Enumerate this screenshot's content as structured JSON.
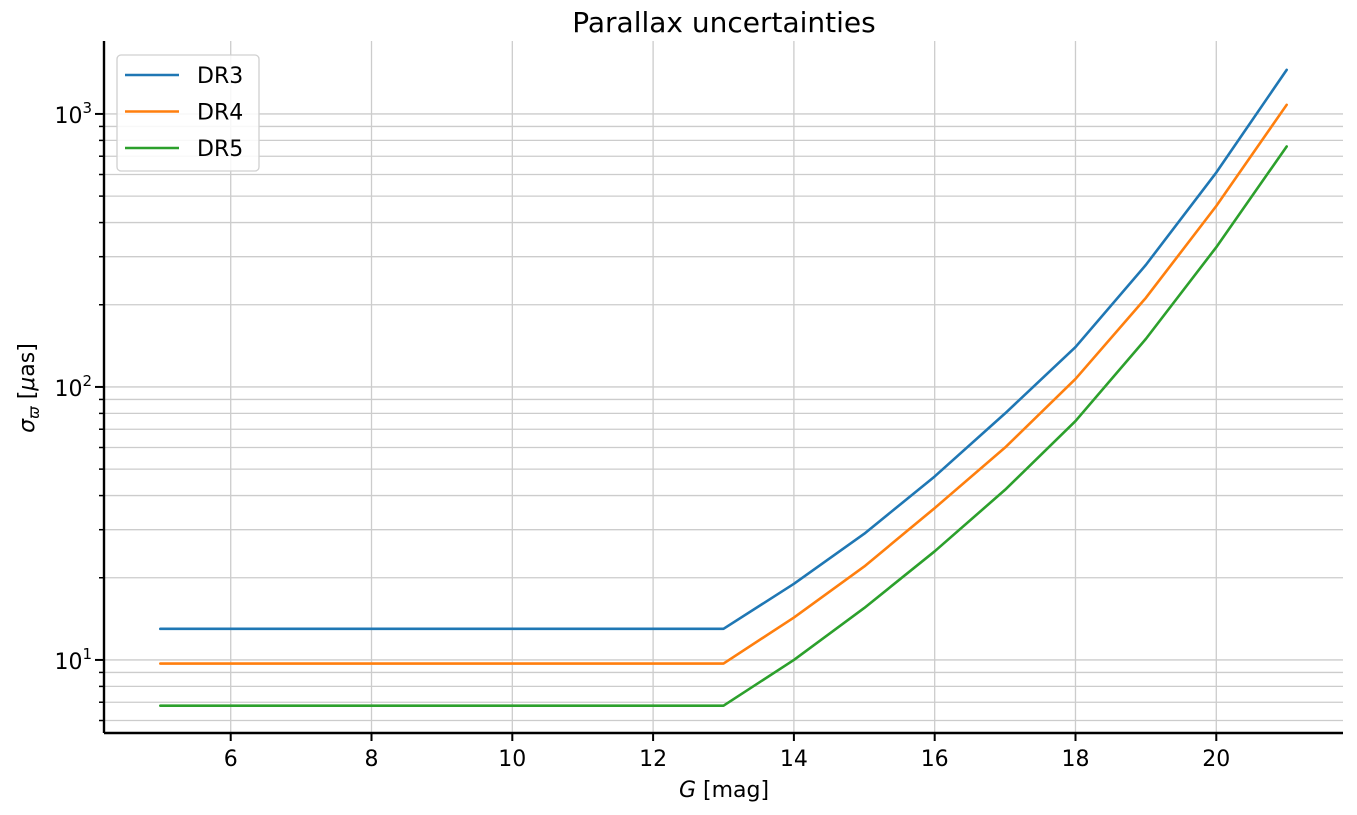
{
  "chart_data": {
    "type": "line",
    "title": "Parallax uncertainties",
    "xlabel": {
      "symbol": "G",
      "unit": " [mag]"
    },
    "ylabel": {
      "symbol": "σ",
      "subscript": "ϖ",
      "unit_prefix": " [",
      "unit_mu": "μ",
      "unit_rest": "as]"
    },
    "xlim": [
      4.2,
      21.8
    ],
    "ylim": [
      5.4,
      1850
    ],
    "yscale": "log",
    "xticks": [
      6,
      8,
      10,
      12,
      14,
      16,
      18,
      20
    ],
    "yticks_major": [
      {
        "value": 10,
        "base": "10",
        "exp": "1"
      },
      {
        "value": 100,
        "base": "10",
        "exp": "2"
      },
      {
        "value": 1000,
        "base": "10",
        "exp": "3"
      }
    ],
    "yticks_minor": [
      6,
      7,
      8,
      9,
      20,
      30,
      40,
      50,
      60,
      70,
      80,
      90,
      200,
      300,
      400,
      500,
      600,
      700,
      800,
      900
    ],
    "grid": true,
    "legend_position": "top-left",
    "series": [
      {
        "name": "DR3",
        "color": "#1f77b4",
        "x": [
          5,
          6,
          7,
          8,
          9,
          10,
          11,
          12,
          13,
          14,
          15,
          16,
          17,
          18,
          19,
          20,
          21
        ],
        "y": [
          13,
          13,
          13,
          13,
          13,
          13,
          13,
          13,
          13,
          19,
          29,
          47,
          80,
          140,
          280,
          610,
          1450
        ]
      },
      {
        "name": "DR4",
        "color": "#ff7f0e",
        "x": [
          5,
          6,
          7,
          8,
          9,
          10,
          11,
          12,
          13,
          14,
          15,
          16,
          17,
          18,
          19,
          20,
          21
        ],
        "y": [
          9.7,
          9.7,
          9.7,
          9.7,
          9.7,
          9.7,
          9.7,
          9.7,
          9.7,
          14.3,
          22,
          36,
          60,
          107,
          212,
          460,
          1080
        ]
      },
      {
        "name": "DR5",
        "color": "#2ca02c",
        "x": [
          5,
          6,
          7,
          8,
          9,
          10,
          11,
          12,
          13,
          14,
          15,
          16,
          17,
          18,
          19,
          20,
          21
        ],
        "y": [
          6.8,
          6.8,
          6.8,
          6.8,
          6.8,
          6.8,
          6.8,
          6.8,
          6.8,
          10,
          15.5,
          25,
          42,
          75,
          150,
          325,
          760
        ]
      }
    ]
  }
}
